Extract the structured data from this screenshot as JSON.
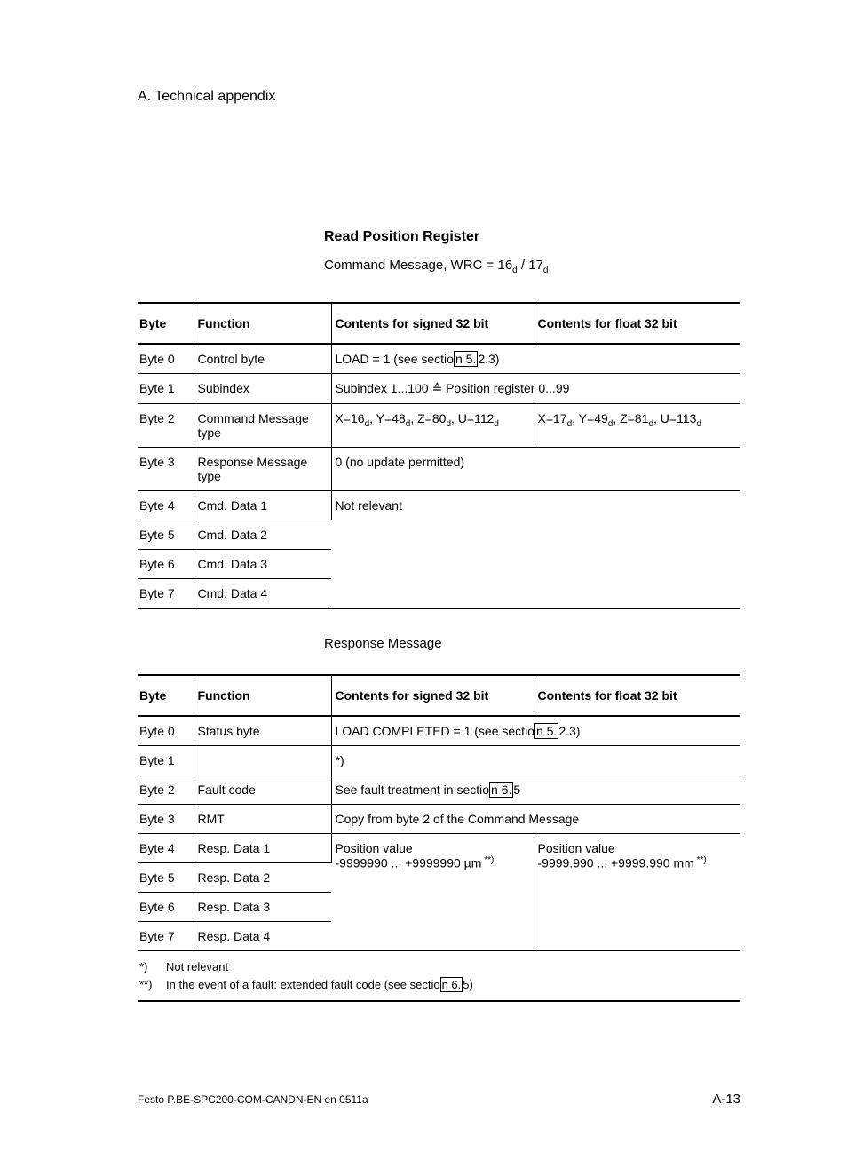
{
  "header": "A.   Technical appendix",
  "section1": {
    "title": "Read Position Register",
    "subtitle_plain": "Command Message, WRC = 16",
    "subtitle_sub1": "d",
    "subtitle_sep": " / 17",
    "subtitle_sub2": "d"
  },
  "table_headers": {
    "byte": "Byte",
    "function": "Function",
    "signed": "Contents for signed 32 bit",
    "float": "Contents for float 32 bit"
  },
  "table1": {
    "r0": {
      "byte": "Byte 0",
      "func": "Control byte",
      "content_pre": "LOAD = 1 (see sectio",
      "link": "n 5.",
      "content_post": "2.3)"
    },
    "r1": {
      "byte": "Byte 1",
      "func": "Subindex",
      "content": "Subindex 1...100  ≙  Position register 0...99"
    },
    "r2": {
      "byte": "Byte 2",
      "func": "Command Message type",
      "signed_x": "X=16",
      "signed_y": ", Y=48",
      "signed_z": ", Z=80",
      "signed_u": ", U=112",
      "float_x": "X=17",
      "float_y": ", Y=49",
      "float_z": ", Z=81",
      "float_u": ", U=113",
      "d": "d"
    },
    "r3": {
      "byte": "Byte 3",
      "func": "Response Message type",
      "content": "0 (no update permitted)"
    },
    "r4": {
      "byte": "Byte 4",
      "func": "Cmd. Data 1",
      "content": "Not relevant"
    },
    "r5": {
      "byte": "Byte 5",
      "func": "Cmd. Data 2"
    },
    "r6": {
      "byte": "Byte 6",
      "func": "Cmd. Data 3"
    },
    "r7": {
      "byte": "Byte 7",
      "func": "Cmd. Data 4"
    }
  },
  "mid_title": "Response Message",
  "table2": {
    "r0": {
      "byte": "Byte 0",
      "func": "Status byte",
      "content_pre": "LOAD COMPLETED = 1 (see sectio",
      "link": "n 5.",
      "content_post": "2.3)"
    },
    "r1": {
      "byte": "Byte 1",
      "func": "",
      "content": "*)"
    },
    "r2": {
      "byte": "Byte 2",
      "func": "Fault code",
      "content_pre": "See fault treatment in sectio",
      "link": "n 6.",
      "content_post": "5"
    },
    "r3": {
      "byte": "Byte 3",
      "func": "RMT",
      "content": "Copy from byte 2 of the Command Message"
    },
    "r4": {
      "byte": "Byte 4",
      "func": "Resp. Data 1",
      "signed_l1": "Position value",
      "signed_l2": "-9999990 ... +9999990 µm",
      "signed_sup": " **)",
      "float_l1": "Position value",
      "float_l2": "-9999.990 ... +9999.990 mm",
      "float_sup": " **)"
    },
    "r5": {
      "byte": "Byte 5",
      "func": "Resp. Data 2"
    },
    "r6": {
      "byte": "Byte 6",
      "func": "Resp. Data 3"
    },
    "r7": {
      "byte": "Byte 7",
      "func": "Resp. Data 4"
    },
    "foot1_mark": "*)",
    "foot1_text": "Not relevant",
    "foot2_mark": "**)",
    "foot2_pre": "In the event of a fault: extended fault code (see sectio",
    "foot2_link": "n 6.",
    "foot2_post": "5)"
  },
  "footer": {
    "left": "Festo P.BE-SPC200-COM-CANDN-EN  en 0511a",
    "right": "A-13"
  }
}
